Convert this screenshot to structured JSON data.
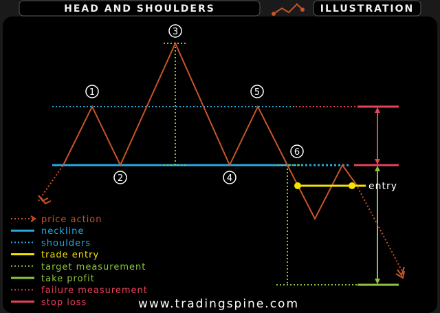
{
  "header": {
    "title": "HEAD AND SHOULDERS",
    "subtitle": "ILLUSTRATION"
  },
  "points": {
    "p1": "1",
    "p2": "2",
    "p3": "3",
    "p4": "4",
    "p5": "5",
    "p6": "6"
  },
  "entry_label": "entry",
  "legend": [
    {
      "label": "price action",
      "color": "#c8552a",
      "style": "dotted-arrow"
    },
    {
      "label": "neckline",
      "color": "#29a9e0",
      "style": "solid"
    },
    {
      "label": "shoulders",
      "color": "#29a9e0",
      "style": "dotted"
    },
    {
      "label": "trade entry",
      "color": "#f5e400",
      "style": "solid"
    },
    {
      "label": "target measurement",
      "color": "#8cc63f",
      "style": "dotted"
    },
    {
      "label": "take profit",
      "color": "#8cc63f",
      "style": "solid"
    },
    {
      "label": "failure measurement",
      "color": "#e8415a",
      "style": "dotted"
    },
    {
      "label": "stop loss",
      "color": "#e8415a",
      "style": "solid"
    }
  ],
  "footer": {
    "url": "www.tradingspine.com"
  },
  "colors": {
    "background": "#1a1a1a",
    "panel": "#000000",
    "price": "#c8552a",
    "neckline": "#29a9e0",
    "entry": "#f5e400",
    "target": "#8cc63f",
    "stop": "#e8415a"
  }
}
